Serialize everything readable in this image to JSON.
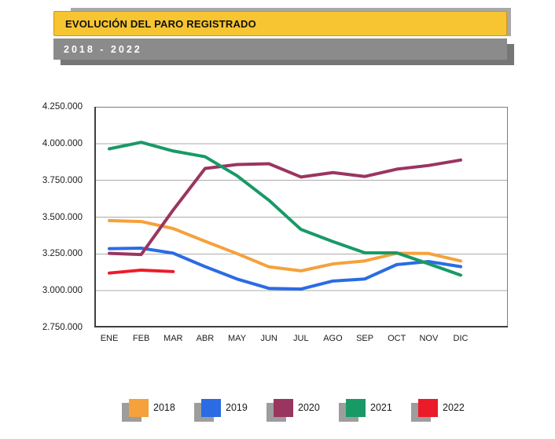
{
  "header": {
    "title": "EVOLUCIÓN DEL PARO REGISTRADO",
    "subtitle": "2018 - 2022"
  },
  "chart_data": {
    "type": "line",
    "title": "EVOLUCIÓN DEL PARO REGISTRADO",
    "subtitle": "2018 - 2022",
    "categories": [
      "ENE",
      "FEB",
      "MAR",
      "ABR",
      "MAY",
      "JUN",
      "JUL",
      "AGO",
      "SEP",
      "OCT",
      "NOV",
      "DIC"
    ],
    "series": [
      {
        "name": "2018",
        "color": "#F5A13C",
        "values": [
          3476528,
          3470248,
          3422551,
          3335868,
          3252130,
          3162162,
          3135021,
          3182068,
          3202509,
          3254703,
          3252867,
          3202297
        ]
      },
      {
        "name": "2019",
        "color": "#2B6BE4",
        "values": [
          3285761,
          3289040,
          3255084,
          3163566,
          3079491,
          3015686,
          3011433,
          3065804,
          3079711,
          3177659,
          3198184,
          3163605
        ]
      },
      {
        "name": "2020",
        "color": "#9A3560",
        "values": [
          3253853,
          3246047,
          3548312,
          3831203,
          3857776,
          3862883,
          3773034,
          3802814,
          3776485,
          3826043,
          3851312,
          3888137
        ]
      },
      {
        "name": "2021",
        "color": "#189A66",
        "values": [
          3964353,
          4008789,
          3949640,
          3910628,
          3781250,
          3614339,
          3416498,
          3333915,
          3257802,
          3257068,
          3182687,
          3105905
        ]
      },
      {
        "name": "2022",
        "color": "#EC1B2A",
        "values": [
          3120000,
          3140000,
          3130000
        ]
      }
    ],
    "ylim": [
      2750000,
      4250000
    ],
    "ytick_step": 250000,
    "y_tick_labels": [
      "2.750.000",
      "3.000.000",
      "3.250.000",
      "3.500.000",
      "3.750.000",
      "4.000.000",
      "4.250.000"
    ],
    "grid": true,
    "legend_position": "bottom",
    "colors": {
      "gridline": "#ABABAB",
      "plot_border": "#7d7d7d",
      "axis": "#3f3f3f",
      "title_bar_fill": "#f6c531",
      "subtitle_bar_fill": "#8b8b8b",
      "legend_shadow": "#9d9d9d"
    }
  }
}
